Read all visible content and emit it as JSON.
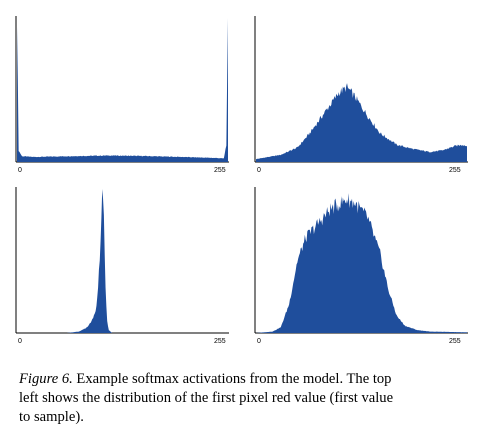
{
  "chart_data": [
    {
      "type": "area",
      "xlim": [
        0,
        255
      ],
      "x_ticks": [
        "0",
        "255"
      ],
      "color": "#1f4e9c",
      "shape": "near-uniform low plateau with spikes at both ends",
      "profile": [
        [
          0,
          1.0
        ],
        [
          2,
          0.08
        ],
        [
          6,
          0.04
        ],
        [
          20,
          0.035
        ],
        [
          60,
          0.04
        ],
        [
          110,
          0.045
        ],
        [
          150,
          0.042
        ],
        [
          200,
          0.035
        ],
        [
          240,
          0.028
        ],
        [
          250,
          0.025
        ],
        [
          253,
          0.12
        ],
        [
          255,
          1.0
        ]
      ]
    },
    {
      "type": "area",
      "xlim": [
        0,
        255
      ],
      "x_ticks": [
        "0",
        "255"
      ],
      "color": "#1f4e9c",
      "shape": "broad mode around 110 with secondary rise near 255",
      "profile": [
        [
          0,
          0.02
        ],
        [
          10,
          0.03
        ],
        [
          30,
          0.05
        ],
        [
          50,
          0.1
        ],
        [
          65,
          0.2
        ],
        [
          85,
          0.36
        ],
        [
          100,
          0.48
        ],
        [
          110,
          0.52
        ],
        [
          120,
          0.45
        ],
        [
          135,
          0.32
        ],
        [
          150,
          0.2
        ],
        [
          170,
          0.12
        ],
        [
          190,
          0.09
        ],
        [
          210,
          0.07
        ],
        [
          225,
          0.08
        ],
        [
          240,
          0.11
        ],
        [
          250,
          0.12
        ],
        [
          255,
          0.11
        ]
      ]
    },
    {
      "type": "area",
      "xlim": [
        0,
        255
      ],
      "x_ticks": [
        "0",
        "255"
      ],
      "color": "#1f4e9c",
      "shape": "very narrow peak near 105",
      "profile": [
        [
          0,
          0.0
        ],
        [
          60,
          0.0
        ],
        [
          75,
          0.01
        ],
        [
          85,
          0.04
        ],
        [
          90,
          0.08
        ],
        [
          95,
          0.15
        ],
        [
          98,
          0.3
        ],
        [
          101,
          0.65
        ],
        [
          103,
          0.98
        ],
        [
          105,
          0.78
        ],
        [
          107,
          0.3
        ],
        [
          109,
          0.08
        ],
        [
          111,
          0.02
        ],
        [
          115,
          0.0
        ],
        [
          255,
          0.0
        ]
      ]
    },
    {
      "type": "area",
      "xlim": [
        0,
        255
      ],
      "x_ticks": [
        "0",
        "255"
      ],
      "color": "#1f4e9c",
      "shape": "wide bell centred near 115",
      "profile": [
        [
          0,
          0.0
        ],
        [
          10,
          0.005
        ],
        [
          20,
          0.01
        ],
        [
          30,
          0.04
        ],
        [
          40,
          0.2
        ],
        [
          50,
          0.5
        ],
        [
          60,
          0.66
        ],
        [
          75,
          0.76
        ],
        [
          90,
          0.86
        ],
        [
          110,
          0.93
        ],
        [
          120,
          0.9
        ],
        [
          135,
          0.8
        ],
        [
          150,
          0.55
        ],
        [
          160,
          0.3
        ],
        [
          170,
          0.12
        ],
        [
          180,
          0.05
        ],
        [
          195,
          0.02
        ],
        [
          210,
          0.01
        ],
        [
          255,
          0.005
        ]
      ]
    }
  ],
  "caption": {
    "label": "Figure 6.",
    "line1": " Example softmax activations from the model.  The top",
    "line2": "left shows the distribution of the first pixel red value (first value",
    "line3": "to sample)."
  }
}
